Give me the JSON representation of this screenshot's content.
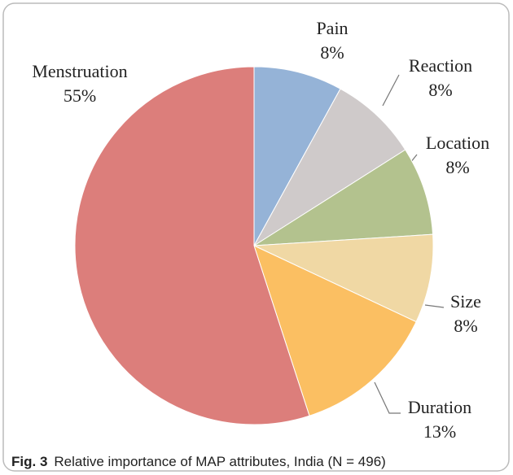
{
  "chart_data": {
    "type": "pie",
    "categories": [
      "Pain",
      "Reaction",
      "Location",
      "Size",
      "Duration",
      "Menstruation"
    ],
    "values": [
      8,
      8,
      8,
      8,
      13,
      55
    ],
    "value_labels": [
      "8%",
      "8%",
      "8%",
      "8%",
      "13%",
      "55%"
    ],
    "colors": [
      "#95b3d7",
      "#cfcaca",
      "#b3c28e",
      "#f0d8a4",
      "#fbbf62",
      "#dc7e7b"
    ],
    "caption_label": "Fig. 3",
    "caption": "Relative importance of MAP attributes, India (N = 496)"
  }
}
